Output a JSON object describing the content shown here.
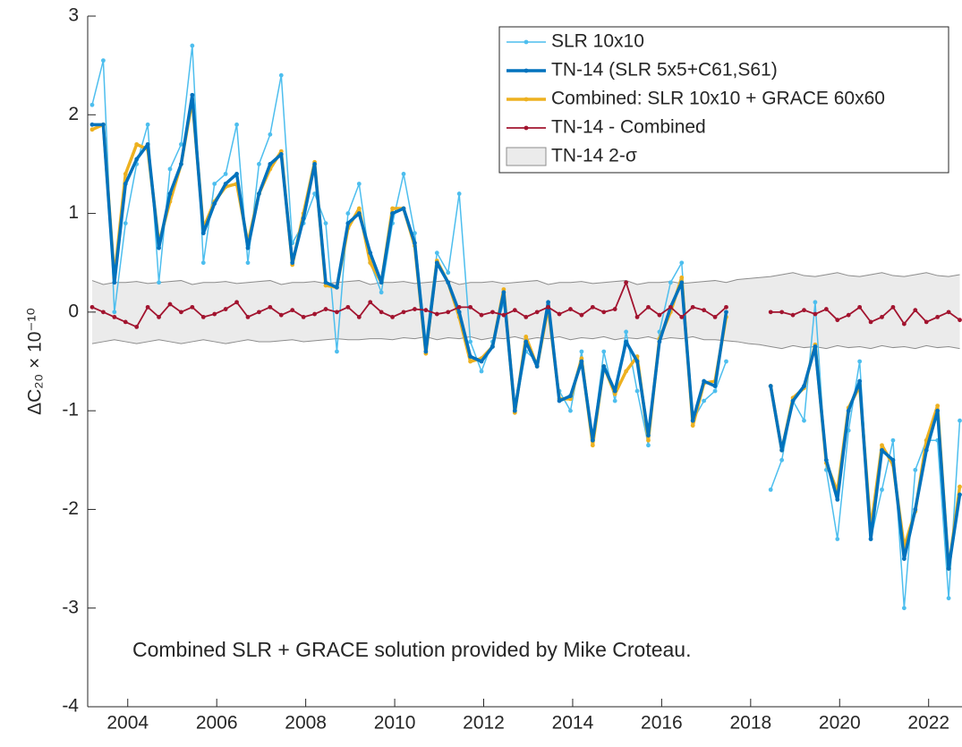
{
  "chart_data": {
    "type": "line",
    "ylabel": "ΔC₂₀ × 10⁻¹⁰",
    "annotation": "Combined SLR + GRACE solution provided by Mike Croteau.",
    "xlim": [
      2003.1,
      2022.75
    ],
    "xticks": [
      2004,
      2006,
      2008,
      2010,
      2012,
      2014,
      2016,
      2018,
      2020,
      2022
    ],
    "ylim": [
      -4,
      3
    ],
    "yticks": [
      -4,
      -3,
      -2,
      -1,
      0,
      1,
      2,
      3
    ],
    "legend": "top-right",
    "x": [
      2003.2,
      2003.45,
      2003.7,
      2003.95,
      2004.2,
      2004.45,
      2004.7,
      2004.95,
      2005.2,
      2005.45,
      2005.7,
      2005.95,
      2006.2,
      2006.45,
      2006.7,
      2006.95,
      2007.2,
      2007.45,
      2007.7,
      2007.95,
      2008.2,
      2008.45,
      2008.7,
      2008.95,
      2009.2,
      2009.45,
      2009.7,
      2009.95,
      2010.2,
      2010.45,
      2010.7,
      2010.95,
      2011.2,
      2011.45,
      2011.7,
      2011.95,
      2012.2,
      2012.45,
      2012.7,
      2012.95,
      2013.2,
      2013.45,
      2013.7,
      2013.95,
      2014.2,
      2014.45,
      2014.7,
      2014.95,
      2015.2,
      2015.45,
      2015.7,
      2015.95,
      2016.2,
      2016.45,
      2016.7,
      2016.95,
      2017.2,
      2017.45,
      2017.7,
      2017.95,
      2018.2,
      2018.45,
      2018.7,
      2018.95,
      2019.2,
      2019.45,
      2019.7,
      2019.95,
      2020.2,
      2020.45,
      2020.7,
      2020.95,
      2021.2,
      2021.45,
      2021.7,
      2021.95,
      2022.2,
      2022.45,
      2022.7
    ],
    "band": {
      "name": "TN-14 2-σ",
      "color": "#ebebeb",
      "edge": "#8c8c8c",
      "upper": [
        0.32,
        0.28,
        0.3,
        0.3,
        0.31,
        0.29,
        0.3,
        0.31,
        0.32,
        0.28,
        0.3,
        0.3,
        0.31,
        0.29,
        0.3,
        0.31,
        0.32,
        0.28,
        0.3,
        0.3,
        0.31,
        0.29,
        0.3,
        0.31,
        0.32,
        0.28,
        0.3,
        0.3,
        0.31,
        0.29,
        0.3,
        0.31,
        0.32,
        0.28,
        0.3,
        0.3,
        0.31,
        0.29,
        0.3,
        0.31,
        0.32,
        0.28,
        0.3,
        0.3,
        0.31,
        0.29,
        0.3,
        0.31,
        0.32,
        0.28,
        0.3,
        0.3,
        0.31,
        0.29,
        0.3,
        0.31,
        0.32,
        0.3,
        0.33,
        0.34,
        0.35,
        0.36,
        0.38,
        0.4,
        0.37,
        0.36,
        0.38,
        0.4,
        0.37,
        0.36,
        0.38,
        0.4,
        0.37,
        0.36,
        0.38,
        0.4,
        0.37,
        0.36,
        0.38
      ],
      "lower": [
        -0.32,
        -0.3,
        -0.28,
        -0.3,
        -0.32,
        -0.3,
        -0.28,
        -0.3,
        -0.32,
        -0.3,
        -0.28,
        -0.3,
        -0.32,
        -0.3,
        -0.28,
        -0.3,
        -0.3,
        -0.29,
        -0.28,
        -0.3,
        -0.29,
        -0.28,
        -0.27,
        -0.28,
        -0.28,
        -0.27,
        -0.27,
        -0.28,
        -0.26,
        -0.27,
        -0.25,
        -0.28,
        -0.26,
        -0.27,
        -0.25,
        -0.28,
        -0.26,
        -0.27,
        -0.25,
        -0.28,
        -0.26,
        -0.27,
        -0.25,
        -0.28,
        -0.26,
        -0.27,
        -0.25,
        -0.28,
        -0.26,
        -0.27,
        -0.25,
        -0.28,
        -0.26,
        -0.27,
        -0.25,
        -0.28,
        -0.28,
        -0.29,
        -0.3,
        -0.32,
        -0.33,
        -0.35,
        -0.37,
        -0.34,
        -0.36,
        -0.35,
        -0.37,
        -0.34,
        -0.36,
        -0.35,
        -0.37,
        -0.34,
        -0.36,
        -0.35,
        -0.37,
        -0.34,
        -0.36,
        -0.35,
        -0.37
      ]
    },
    "series": [
      {
        "name": "SLR 10x10",
        "color": "#4dbeee",
        "width": 1.5,
        "values": [
          2.1,
          2.55,
          0.0,
          0.9,
          1.5,
          1.9,
          0.3,
          1.45,
          1.7,
          2.7,
          0.5,
          1.3,
          1.4,
          1.9,
          0.5,
          1.5,
          1.8,
          2.4,
          0.7,
          0.9,
          1.2,
          0.9,
          -0.4,
          1.0,
          1.3,
          0.5,
          0.2,
          0.9,
          1.4,
          0.8,
          -0.3,
          0.6,
          0.4,
          1.2,
          -0.3,
          -0.6,
          -0.3,
          0.1,
          -1.0,
          -0.4,
          -0.5,
          0.0,
          -0.8,
          -1.0,
          -0.4,
          -1.3,
          -0.4,
          -0.9,
          -0.2,
          -0.8,
          -1.35,
          -0.2,
          0.3,
          0.5,
          -1.1,
          -0.9,
          -0.8,
          -0.5,
          null,
          null,
          null,
          -1.8,
          -1.5,
          -0.9,
          -1.1,
          0.1,
          -1.6,
          -2.3,
          -1.2,
          -0.5,
          -2.3,
          -1.8,
          -1.3,
          -3.0,
          -1.6,
          -1.3,
          -1.3,
          -2.9,
          -1.1
        ]
      },
      {
        "name": "TN-14 (SLR 5x5+C61,S61)",
        "color": "#0072bd",
        "width": 3.5,
        "values": [
          1.9,
          1.9,
          0.3,
          1.3,
          1.55,
          1.7,
          0.65,
          1.2,
          1.5,
          2.2,
          0.8,
          1.1,
          1.3,
          1.4,
          0.65,
          1.2,
          1.5,
          1.6,
          0.5,
          0.95,
          1.5,
          0.3,
          0.25,
          0.9,
          1.0,
          0.6,
          0.3,
          1.0,
          1.05,
          0.7,
          -0.4,
          0.5,
          0.3,
          0.0,
          -0.45,
          -0.5,
          -0.35,
          0.2,
          -1.0,
          -0.3,
          -0.55,
          0.1,
          -0.9,
          -0.85,
          -0.5,
          -1.3,
          -0.55,
          -0.8,
          -0.3,
          -0.5,
          -1.25,
          -0.3,
          0.05,
          0.3,
          -1.1,
          -0.7,
          -0.75,
          0.0,
          null,
          null,
          null,
          -0.75,
          -1.4,
          -0.9,
          -0.75,
          -0.35,
          -1.5,
          -1.9,
          -1.0,
          -0.7,
          -2.3,
          -1.4,
          -1.5,
          -2.5,
          -2.0,
          -1.4,
          -1.0,
          -2.6,
          -1.85
        ]
      },
      {
        "name": "Combined: SLR 10x10 + GRACE 60x60",
        "color": "#edb120",
        "width": 3.5,
        "values": [
          1.85,
          1.9,
          0.35,
          1.4,
          1.7,
          1.65,
          0.7,
          1.12,
          1.5,
          2.15,
          0.85,
          1.12,
          1.27,
          1.3,
          0.7,
          1.2,
          1.45,
          1.63,
          0.48,
          1.0,
          1.52,
          0.27,
          0.25,
          0.85,
          1.05,
          0.5,
          0.3,
          1.05,
          1.05,
          0.67,
          -0.42,
          0.52,
          0.3,
          -0.05,
          -0.5,
          -0.47,
          -0.35,
          0.23,
          -1.02,
          -0.25,
          -0.55,
          0.05,
          -0.88,
          -0.88,
          -0.47,
          -1.35,
          -0.55,
          -0.83,
          -0.6,
          -0.45,
          -1.3,
          -0.27,
          0.0,
          0.35,
          -1.15,
          -0.72,
          -0.7,
          -0.05,
          null,
          null,
          null,
          -0.75,
          -1.4,
          -0.87,
          -0.77,
          -0.33,
          -1.53,
          -1.82,
          -0.97,
          -0.75,
          -2.2,
          -1.35,
          -1.55,
          -2.38,
          -2.02,
          -1.3,
          -0.95,
          -2.6,
          -1.77
        ]
      },
      {
        "name": "TN-14 - Combined",
        "color": "#a2142f",
        "width": 1.8,
        "values": [
          0.05,
          0.0,
          -0.05,
          -0.1,
          -0.15,
          0.05,
          -0.05,
          0.08,
          0.0,
          0.05,
          -0.05,
          -0.02,
          0.03,
          0.1,
          -0.05,
          0.0,
          0.05,
          -0.03,
          0.02,
          -0.05,
          -0.02,
          0.03,
          0.0,
          0.05,
          -0.05,
          0.1,
          0.0,
          -0.05,
          0.0,
          0.03,
          0.02,
          -0.02,
          0.0,
          0.05,
          0.05,
          -0.03,
          0.0,
          -0.03,
          0.02,
          -0.05,
          0.0,
          0.05,
          -0.02,
          0.03,
          -0.03,
          0.05,
          0.0,
          0.03,
          0.3,
          -0.05,
          0.05,
          -0.03,
          0.05,
          -0.05,
          0.05,
          0.02,
          -0.05,
          0.05,
          null,
          null,
          null,
          0.0,
          0.0,
          -0.03,
          0.02,
          -0.02,
          0.03,
          -0.08,
          -0.03,
          0.05,
          -0.1,
          -0.05,
          0.05,
          -0.12,
          0.02,
          -0.1,
          -0.05,
          0.0,
          -0.08
        ]
      }
    ]
  }
}
